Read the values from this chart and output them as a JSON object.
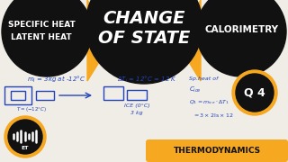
{
  "bg_color": "#f0ede6",
  "circle_color": "#111111",
  "accent_color": "#f5a820",
  "white": "#ffffff",
  "blue": "#2244bb",
  "dark": "#111111",
  "left_line1": "SPECIFIC HEAT",
  "left_line2": "LATENT HEAT",
  "center_line1": "CHANGE",
  "center_line2": "OF STATE",
  "right_title": "CALORIMETRY",
  "q4_label": "Q 4",
  "thermo_label": "THERMODYNAMICS",
  "fig_w": 3.2,
  "fig_h": 1.8,
  "dpi": 100
}
